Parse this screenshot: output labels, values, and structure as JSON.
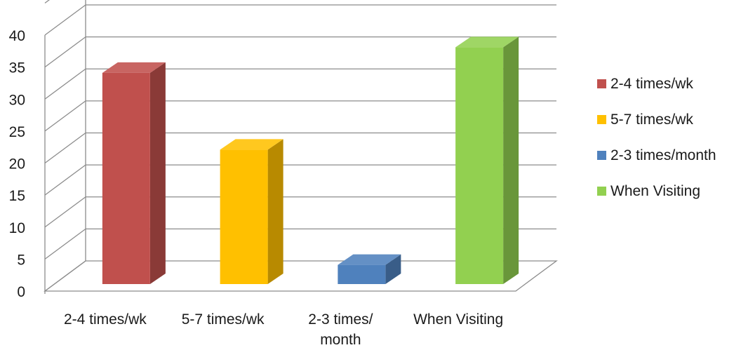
{
  "chart_data": {
    "type": "bar",
    "style": "3d-column",
    "categories": [
      "2-4 times/wk",
      "5-7 times/wk",
      "2-3 times/ month",
      "When Visiting"
    ],
    "category_label_lines": [
      [
        "2-4 times/wk"
      ],
      [
        "5-7 times/wk"
      ],
      [
        "2-3 times/",
        "month"
      ],
      [
        "When Visiting"
      ]
    ],
    "values": [
      33,
      21,
      3,
      37
    ],
    "colors": [
      "#c0504d",
      "#ffc000",
      "#4f81bd",
      "#92d050"
    ],
    "yticks": [
      "0",
      "5",
      "10",
      "15",
      "20",
      "25",
      "30",
      "35",
      "40"
    ],
    "ylim": [
      0,
      40
    ],
    "grid": true,
    "legend": {
      "position": "right",
      "entries": [
        "2-4 times/wk",
        "5-7 times/wk",
        "2-3 times/month",
        "When Visiting"
      ]
    },
    "title": "",
    "xlabel": "",
    "ylabel": ""
  }
}
